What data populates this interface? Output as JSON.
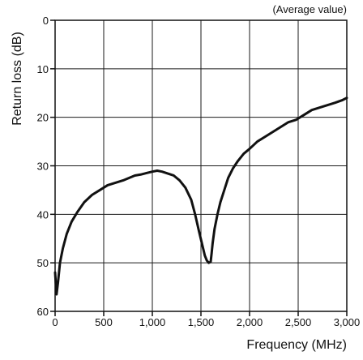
{
  "chart_data": {
    "type": "line",
    "annotation": "(Average value)",
    "xlabel": "Frequency (MHz)",
    "ylabel": "Return loss (dB)",
    "xlim": [
      0,
      3000
    ],
    "ylim": [
      60,
      0
    ],
    "y_inverted": true,
    "x_ticks": [
      0,
      500,
      1000,
      1500,
      2000,
      2500,
      3000
    ],
    "x_tick_labels": [
      "0",
      "500",
      "1,000",
      "1,500",
      "2,000",
      "2,500",
      "3,000"
    ],
    "y_ticks": [
      0,
      10,
      20,
      30,
      40,
      50,
      60
    ],
    "y_tick_labels": [
      "0",
      "10",
      "20",
      "30",
      "40",
      "50",
      "60"
    ],
    "grid": true,
    "series": [
      {
        "color": "#111111",
        "x": [
          0,
          15,
          30,
          50,
          80,
          120,
          170,
          230,
          300,
          380,
          460,
          540,
          620,
          700,
          760,
          820,
          880,
          940,
          1000,
          1050,
          1100,
          1160,
          1220,
          1280,
          1340,
          1400,
          1440,
          1480,
          1510,
          1540,
          1560,
          1580,
          1600,
          1610,
          1620,
          1640,
          1670,
          1700,
          1740,
          1780,
          1830,
          1880,
          1940,
          2000,
          2080,
          2160,
          2240,
          2320,
          2400,
          2480,
          2560,
          2640,
          2720,
          2800,
          2880,
          2950,
          3000
        ],
        "y": [
          52,
          56.5,
          54,
          50,
          47,
          44,
          41.5,
          39.5,
          37.5,
          36,
          35,
          34,
          33.5,
          33,
          32.5,
          32,
          31.8,
          31.5,
          31.2,
          31,
          31.2,
          31.6,
          32,
          33,
          34.5,
          37,
          40,
          43.5,
          46,
          48.5,
          49.5,
          50,
          49.8,
          48,
          46,
          43,
          40,
          37.5,
          35,
          32.5,
          30.5,
          29,
          27.5,
          26.5,
          25,
          24,
          23,
          22,
          21,
          20.5,
          19.5,
          18.5,
          18,
          17.5,
          17,
          16.5,
          16
        ]
      }
    ]
  }
}
